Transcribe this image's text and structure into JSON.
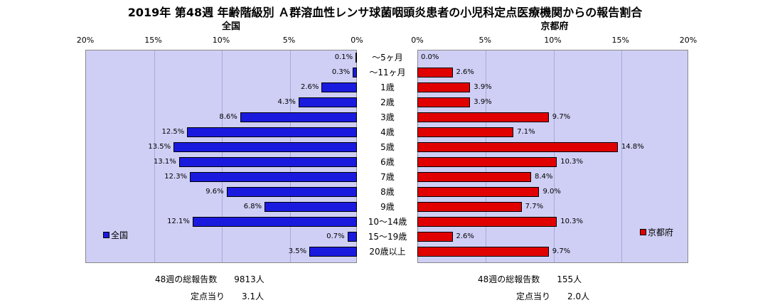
{
  "chart_data": {
    "type": "bar",
    "title": "2019年 第48週 年齢階級別 Ａ群溶血性レンサ球菌咽頭炎患者の小児科定点医療機関からの報告割合",
    "categories": [
      "～5ヶ月",
      "～11ヶ月",
      "1歳",
      "2歳",
      "3歳",
      "4歳",
      "5歳",
      "6歳",
      "7歳",
      "8歳",
      "9歳",
      "10～14歳",
      "15～19歳",
      "20歳以上"
    ],
    "xlim": [
      0,
      20
    ],
    "ticks": [
      "20%",
      "15%",
      "10%",
      "5%",
      "0%"
    ],
    "ticks_right": [
      "0%",
      "5%",
      "10%",
      "15%",
      "20%"
    ],
    "series": [
      {
        "name": "全国",
        "panel_title": "全国",
        "color": "#1a1adf",
        "values": [
          0.1,
          0.3,
          2.6,
          4.3,
          8.6,
          12.5,
          13.5,
          13.1,
          12.3,
          9.6,
          6.8,
          12.1,
          0.7,
          3.5
        ],
        "labels": [
          "0.1%",
          "0.3%",
          "2.6%",
          "4.3%",
          "8.6%",
          "12.5%",
          "13.5%",
          "13.1%",
          "12.3%",
          "9.6%",
          "6.8%",
          "12.1%",
          "0.7%",
          "3.5%"
        ]
      },
      {
        "name": "京都府",
        "panel_title": "京都府",
        "color": "#e00000",
        "values": [
          0.0,
          2.6,
          3.9,
          3.9,
          9.7,
          7.1,
          14.8,
          10.3,
          8.4,
          9.0,
          7.7,
          10.3,
          2.6,
          9.7
        ],
        "labels": [
          "0.0%",
          "2.6%",
          "3.9%",
          "3.9%",
          "9.7%",
          "7.1%",
          "14.8%",
          "10.3%",
          "8.4%",
          "9.0%",
          "7.7%",
          "10.3%",
          "2.6%",
          "9.7%"
        ]
      }
    ]
  },
  "footer": {
    "left_total": "48週の総報告数　　9813人",
    "left_per": "定点当り　　3.1人",
    "right_total": "48週の総報告数　　155人",
    "right_per": "定点当り　　2.0人"
  }
}
